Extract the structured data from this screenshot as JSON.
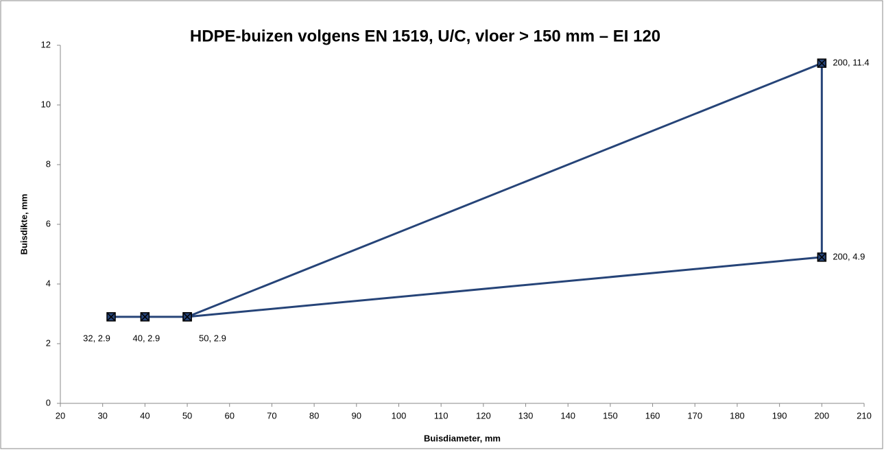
{
  "chart_data": {
    "type": "line",
    "title": "HDPE-buizen volgens EN 1519, U/C, vloer > 150 mm – EI 120",
    "x_label": "Buisdiameter, mm",
    "y_label": "Buisdikte, mm",
    "xlim": [
      20,
      210
    ],
    "xticks": [
      20,
      30,
      40,
      50,
      60,
      70,
      80,
      90,
      100,
      110,
      120,
      130,
      140,
      150,
      160,
      170,
      180,
      190,
      200,
      210
    ],
    "ylim": [
      0,
      12
    ],
    "yticks": [
      0,
      2,
      4,
      6,
      8,
      10,
      12
    ],
    "grid": false,
    "series": [
      {
        "color": "#264478",
        "x": [
          32,
          40,
          50,
          200,
          200,
          50
        ],
        "values": [
          2.9,
          2.9,
          2.9,
          11.4,
          4.9,
          2.9
        ],
        "value_labels": [
          "32, 2.9",
          "40, 2.9",
          "50, 2.9",
          "200, 11.4",
          "200, 4.9",
          null
        ]
      }
    ]
  }
}
